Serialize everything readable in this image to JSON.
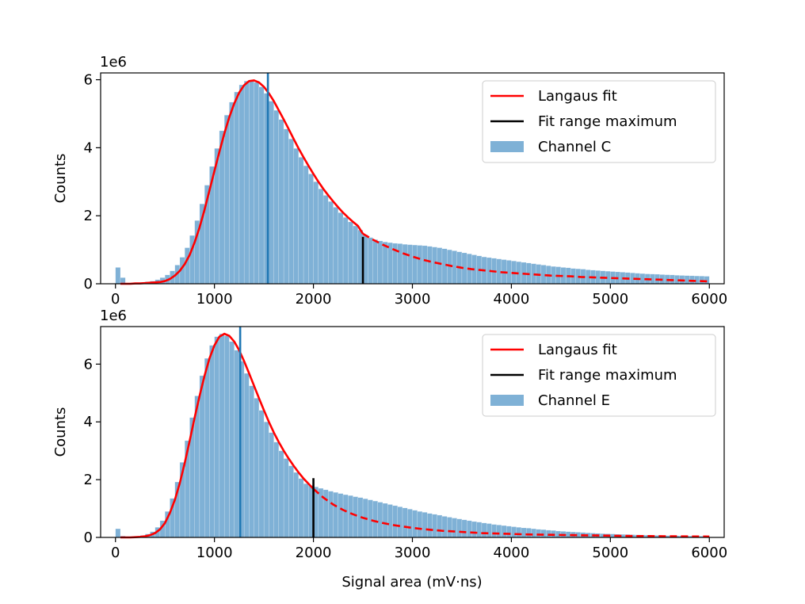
{
  "figure": {
    "xlabel": "Signal area (mV·ns)"
  },
  "chart_data": [
    {
      "type": "bar",
      "title": "",
      "xlabel": "",
      "ylabel": "Counts",
      "offset_label": "1e6",
      "xlim": [
        -150,
        6150
      ],
      "ylim": [
        0,
        6.2
      ],
      "xticks": [
        0,
        1000,
        2000,
        3000,
        4000,
        5000,
        6000
      ],
      "xtick_labels": [
        "0",
        "1000",
        "2000",
        "3000",
        "4000",
        "5000",
        "6000"
      ],
      "yticks": [
        0,
        2,
        4,
        6
      ],
      "ytick_labels": [
        "0",
        "2",
        "4",
        "6"
      ],
      "bin_width": 50,
      "histogram": {
        "name": "Channel C",
        "color": "#7fb1d6",
        "x": [
          0,
          50,
          100,
          150,
          200,
          250,
          300,
          350,
          400,
          450,
          500,
          550,
          600,
          650,
          700,
          750,
          800,
          850,
          900,
          950,
          1000,
          1050,
          1100,
          1150,
          1200,
          1250,
          1300,
          1350,
          1400,
          1450,
          1500,
          1550,
          1600,
          1650,
          1700,
          1750,
          1800,
          1850,
          1900,
          1950,
          2000,
          2050,
          2100,
          2150,
          2200,
          2250,
          2300,
          2350,
          2400,
          2450,
          2500,
          2550,
          2600,
          2650,
          2700,
          2750,
          2800,
          2850,
          2900,
          2950,
          3000,
          3050,
          3100,
          3150,
          3200,
          3250,
          3300,
          3350,
          3400,
          3450,
          3500,
          3550,
          3600,
          3650,
          3700,
          3750,
          3800,
          3850,
          3900,
          3950,
          4000,
          4050,
          4100,
          4150,
          4200,
          4250,
          4300,
          4350,
          4400,
          4450,
          4500,
          4550,
          4600,
          4650,
          4700,
          4750,
          4800,
          4850,
          4900,
          4950,
          5000,
          5050,
          5100,
          5150,
          5200,
          5250,
          5300,
          5350,
          5400,
          5450,
          5500,
          5550,
          5600,
          5650,
          5700,
          5750,
          5800,
          5850,
          5900,
          5950
        ],
        "counts": [
          0.48,
          0.18,
          0.02,
          0.02,
          0.03,
          0.04,
          0.06,
          0.08,
          0.12,
          0.18,
          0.26,
          0.38,
          0.55,
          0.78,
          1.06,
          1.42,
          1.86,
          2.35,
          2.9,
          3.45,
          3.98,
          4.5,
          4.96,
          5.34,
          5.64,
          5.85,
          5.96,
          5.98,
          5.92,
          5.79,
          5.6,
          5.37,
          5.1,
          4.83,
          4.55,
          4.26,
          3.98,
          3.72,
          3.47,
          3.23,
          3.0,
          2.79,
          2.6,
          2.42,
          2.25,
          2.09,
          1.95,
          1.82,
          1.7,
          1.58,
          1.44,
          1.36,
          1.3,
          1.26,
          1.23,
          1.21,
          1.19,
          1.18,
          1.16,
          1.15,
          1.14,
          1.13,
          1.12,
          1.1,
          1.08,
          1.06,
          1.03,
          1.0,
          0.97,
          0.94,
          0.91,
          0.88,
          0.85,
          0.82,
          0.79,
          0.77,
          0.75,
          0.73,
          0.71,
          0.69,
          0.67,
          0.65,
          0.63,
          0.61,
          0.59,
          0.57,
          0.55,
          0.53,
          0.51,
          0.5,
          0.48,
          0.47,
          0.45,
          0.44,
          0.43,
          0.41,
          0.4,
          0.39,
          0.38,
          0.37,
          0.36,
          0.35,
          0.34,
          0.33,
          0.32,
          0.31,
          0.3,
          0.29,
          0.285,
          0.28,
          0.27,
          0.265,
          0.26,
          0.25,
          0.245,
          0.24,
          0.235,
          0.23,
          0.225,
          0.22
        ]
      },
      "fit": {
        "name": "Langaus fit",
        "color": "#ff0000",
        "x": [
          50,
          100,
          150,
          200,
          250,
          300,
          350,
          400,
          450,
          500,
          550,
          600,
          650,
          700,
          750,
          800,
          850,
          900,
          950,
          1000,
          1050,
          1100,
          1150,
          1200,
          1250,
          1300,
          1350,
          1400,
          1450,
          1500,
          1550,
          1600,
          1650,
          1700,
          1750,
          1800,
          1850,
          1900,
          1950,
          2000,
          2050,
          2100,
          2150,
          2200,
          2250,
          2300,
          2350,
          2400,
          2450,
          2500,
          2600,
          2700,
          2800,
          2900,
          3000,
          3100,
          3200,
          3300,
          3400,
          3500,
          3600,
          3700,
          3800,
          3900,
          4000,
          4100,
          4200,
          4300,
          4400,
          4500,
          4600,
          4700,
          4800,
          4900,
          5000,
          5100,
          5200,
          5300,
          5400,
          5500,
          5600,
          5700,
          5800,
          5900,
          6000
        ],
        "y": [
          0.0,
          0.0,
          0.0,
          0.01,
          0.01,
          0.02,
          0.03,
          0.04,
          0.05,
          0.08,
          0.14,
          0.24,
          0.38,
          0.58,
          0.85,
          1.22,
          1.66,
          2.18,
          2.75,
          3.32,
          3.88,
          4.42,
          4.9,
          5.3,
          5.62,
          5.84,
          5.96,
          5.98,
          5.92,
          5.79,
          5.6,
          5.37,
          5.1,
          4.83,
          4.55,
          4.26,
          3.98,
          3.72,
          3.47,
          3.23,
          3.0,
          2.79,
          2.6,
          2.42,
          2.25,
          2.09,
          1.95,
          1.82,
          1.7,
          1.47,
          1.3,
          1.15,
          1.02,
          0.9,
          0.8,
          0.71,
          0.64,
          0.58,
          0.52,
          0.47,
          0.43,
          0.4,
          0.37,
          0.34,
          0.32,
          0.3,
          0.28,
          0.26,
          0.24,
          0.23,
          0.22,
          0.2,
          0.19,
          0.18,
          0.17,
          0.16,
          0.15,
          0.14,
          0.13,
          0.12,
          0.11,
          0.1,
          0.09,
          0.08,
          0.07
        ],
        "solid_until": 2500
      },
      "fit_range_maximum": {
        "name": "Fit range maximum",
        "color": "#000000",
        "x": 2500,
        "y": 1.38
      },
      "peak_marker": {
        "color": "#1f77b4",
        "x": 1540
      },
      "legend": {
        "placement": "upper right",
        "entries": [
          {
            "label": "Langaus fit",
            "kind": "line",
            "color": "#ff0000"
          },
          {
            "label": "Fit range maximum",
            "kind": "line",
            "color": "#000000"
          },
          {
            "label": "Channel C",
            "kind": "patch",
            "color": "#7fb1d6"
          }
        ]
      }
    },
    {
      "type": "bar",
      "title": "",
      "xlabel": "Signal area (mV·ns)",
      "ylabel": "Counts",
      "offset_label": "1e6",
      "xlim": [
        -150,
        6150
      ],
      "ylim": [
        0,
        7.3
      ],
      "xticks": [
        0,
        1000,
        2000,
        3000,
        4000,
        5000,
        6000
      ],
      "xtick_labels": [
        "0",
        "1000",
        "2000",
        "3000",
        "4000",
        "5000",
        "6000"
      ],
      "yticks": [
        0,
        2,
        4,
        6
      ],
      "ytick_labels": [
        "0",
        "2",
        "4",
        "6"
      ],
      "bin_width": 50,
      "histogram": {
        "name": "Channel E",
        "color": "#7fb1d6",
        "x": [
          0,
          50,
          100,
          150,
          200,
          250,
          300,
          350,
          400,
          450,
          500,
          550,
          600,
          650,
          700,
          750,
          800,
          850,
          900,
          950,
          1000,
          1050,
          1100,
          1150,
          1200,
          1250,
          1300,
          1350,
          1400,
          1450,
          1500,
          1550,
          1600,
          1650,
          1700,
          1750,
          1800,
          1850,
          1900,
          1950,
          2000,
          2050,
          2100,
          2150,
          2200,
          2250,
          2300,
          2350,
          2400,
          2450,
          2500,
          2550,
          2600,
          2650,
          2700,
          2750,
          2800,
          2850,
          2900,
          2950,
          3000,
          3050,
          3100,
          3150,
          3200,
          3250,
          3300,
          3350,
          3400,
          3450,
          3500,
          3550,
          3600,
          3650,
          3700,
          3750,
          3800,
          3850,
          3900,
          3950,
          4000,
          4050,
          4100,
          4150,
          4200,
          4250,
          4300,
          4350,
          4400,
          4450,
          4500,
          4550,
          4600,
          4650,
          4700,
          4750,
          4800,
          4850,
          4900,
          4950,
          5000,
          5050,
          5100,
          5150,
          5200,
          5250,
          5300,
          5350,
          5400,
          5450,
          5500,
          5550,
          5600,
          5650,
          5700,
          5750,
          5800,
          5850,
          5900,
          5950
        ],
        "counts": [
          0.3,
          0.05,
          0.01,
          0.02,
          0.04,
          0.07,
          0.12,
          0.2,
          0.35,
          0.58,
          0.9,
          1.35,
          1.92,
          2.6,
          3.35,
          4.15,
          4.9,
          5.6,
          6.2,
          6.65,
          6.95,
          7.05,
          6.98,
          6.78,
          6.48,
          6.1,
          5.68,
          5.25,
          4.82,
          4.4,
          4.0,
          3.63,
          3.3,
          3.0,
          2.73,
          2.48,
          2.25,
          2.04,
          1.86,
          1.8,
          1.75,
          1.7,
          1.65,
          1.6,
          1.56,
          1.52,
          1.48,
          1.45,
          1.41,
          1.38,
          1.34,
          1.3,
          1.26,
          1.22,
          1.18,
          1.14,
          1.1,
          1.06,
          1.02,
          0.98,
          0.94,
          0.9,
          0.87,
          0.83,
          0.8,
          0.77,
          0.73,
          0.7,
          0.67,
          0.64,
          0.61,
          0.58,
          0.55,
          0.53,
          0.5,
          0.48,
          0.45,
          0.43,
          0.41,
          0.39,
          0.37,
          0.35,
          0.33,
          0.32,
          0.3,
          0.28,
          0.27,
          0.25,
          0.24,
          0.22,
          0.21,
          0.2,
          0.19,
          0.18,
          0.17,
          0.16,
          0.15,
          0.14,
          0.13,
          0.125,
          0.12,
          0.11,
          0.105,
          0.1,
          0.095,
          0.09,
          0.085,
          0.08,
          0.075,
          0.07,
          0.067,
          0.064,
          0.06,
          0.057,
          0.054,
          0.051,
          0.048,
          0.045,
          0.042,
          0.04
        ]
      },
      "fit": {
        "name": "Langaus fit",
        "color": "#ff0000",
        "x": [
          50,
          100,
          150,
          200,
          250,
          300,
          350,
          400,
          450,
          500,
          550,
          600,
          650,
          700,
          750,
          800,
          850,
          900,
          950,
          1000,
          1050,
          1100,
          1150,
          1200,
          1250,
          1300,
          1350,
          1400,
          1450,
          1500,
          1550,
          1600,
          1650,
          1700,
          1750,
          1800,
          1850,
          1900,
          1950,
          2000,
          2100,
          2200,
          2300,
          2400,
          2500,
          2600,
          2700,
          2800,
          2900,
          3000,
          3100,
          3200,
          3300,
          3400,
          3500,
          3600,
          3700,
          3800,
          3900,
          4000,
          4200,
          4400,
          4600,
          4800,
          5000,
          5200,
          5400,
          5600,
          5800,
          6000
        ],
        "y": [
          0.0,
          0.0,
          0.0,
          0.01,
          0.02,
          0.04,
          0.08,
          0.15,
          0.28,
          0.5,
          0.85,
          1.3,
          1.88,
          2.58,
          3.35,
          4.15,
          4.9,
          5.6,
          6.2,
          6.65,
          6.95,
          7.05,
          6.98,
          6.78,
          6.48,
          6.1,
          5.68,
          5.25,
          4.82,
          4.4,
          4.0,
          3.63,
          3.3,
          3.0,
          2.73,
          2.48,
          2.25,
          2.04,
          1.86,
          1.68,
          1.38,
          1.14,
          0.95,
          0.8,
          0.68,
          0.58,
          0.5,
          0.43,
          0.38,
          0.33,
          0.29,
          0.26,
          0.23,
          0.21,
          0.19,
          0.17,
          0.15,
          0.14,
          0.13,
          0.12,
          0.1,
          0.09,
          0.08,
          0.07,
          0.06,
          0.05,
          0.045,
          0.04,
          0.035,
          0.03
        ],
        "solid_until": 2000
      },
      "fit_range_maximum": {
        "name": "Fit range maximum",
        "color": "#000000",
        "x": 2000,
        "y": 2.05
      },
      "peak_marker": {
        "color": "#1f77b4",
        "x": 1260
      },
      "legend": {
        "placement": "upper right",
        "entries": [
          {
            "label": "Langaus fit",
            "kind": "line",
            "color": "#ff0000"
          },
          {
            "label": "Fit range maximum",
            "kind": "line",
            "color": "#000000"
          },
          {
            "label": "Channel E",
            "kind": "patch",
            "color": "#7fb1d6"
          }
        ]
      }
    }
  ]
}
